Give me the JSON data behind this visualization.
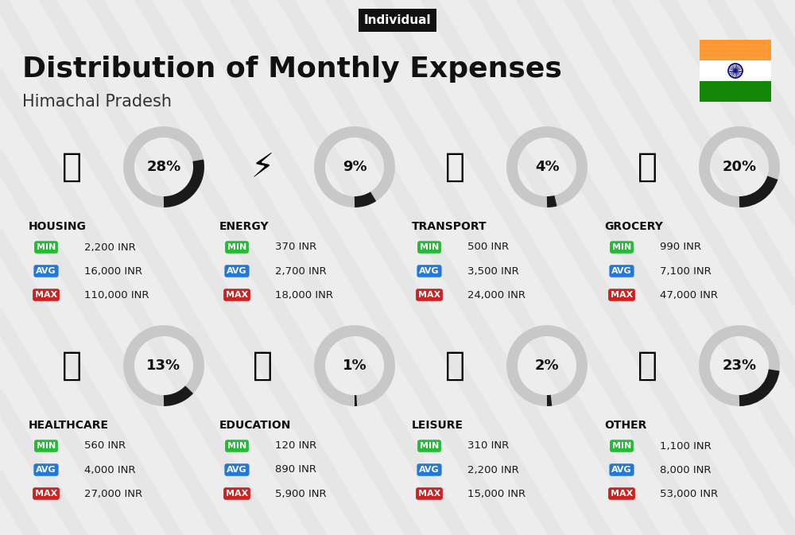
{
  "title": "Distribution of Monthly Expenses",
  "subtitle": "Himachal Pradesh",
  "tag": "Individual",
  "bg_color": "#ededee",
  "categories": [
    {
      "name": "HOUSING",
      "pct": 28,
      "min": "2,200 INR",
      "avg": "16,000 INR",
      "max": "110,000 INR",
      "row": 0,
      "col": 0
    },
    {
      "name": "ENERGY",
      "pct": 9,
      "min": "370 INR",
      "avg": "2,700 INR",
      "max": "18,000 INR",
      "row": 0,
      "col": 1
    },
    {
      "name": "TRANSPORT",
      "pct": 4,
      "min": "500 INR",
      "avg": "3,500 INR",
      "max": "24,000 INR",
      "row": 0,
      "col": 2
    },
    {
      "name": "GROCERY",
      "pct": 20,
      "min": "990 INR",
      "avg": "7,100 INR",
      "max": "47,000 INR",
      "row": 0,
      "col": 3
    },
    {
      "name": "HEALTHCARE",
      "pct": 13,
      "min": "560 INR",
      "avg": "4,000 INR",
      "max": "27,000 INR",
      "row": 1,
      "col": 0
    },
    {
      "name": "EDUCATION",
      "pct": 1,
      "min": "120 INR",
      "avg": "890 INR",
      "max": "5,900 INR",
      "row": 1,
      "col": 1
    },
    {
      "name": "LEISURE",
      "pct": 2,
      "min": "310 INR",
      "avg": "2,200 INR",
      "max": "15,000 INR",
      "row": 1,
      "col": 2
    },
    {
      "name": "OTHER",
      "pct": 23,
      "min": "1,100 INR",
      "avg": "8,000 INR",
      "max": "53,000 INR",
      "row": 1,
      "col": 3
    }
  ],
  "min_color": "#22bb33",
  "avg_color": "#2277dd",
  "max_color": "#cc2222",
  "value_text_color": "#1a1a1a",
  "category_text_color": "#111111",
  "pct_text_color": "#111111",
  "arc_filled_color": "#1a1a1a",
  "arc_empty_color": "#c8c8c8",
  "stripe_color": "#e0e0e2",
  "india_flag_orange": "#FF9933",
  "india_flag_green": "#138808",
  "india_flag_white": "#FFFFFF",
  "india_flag_blue": "#000080"
}
